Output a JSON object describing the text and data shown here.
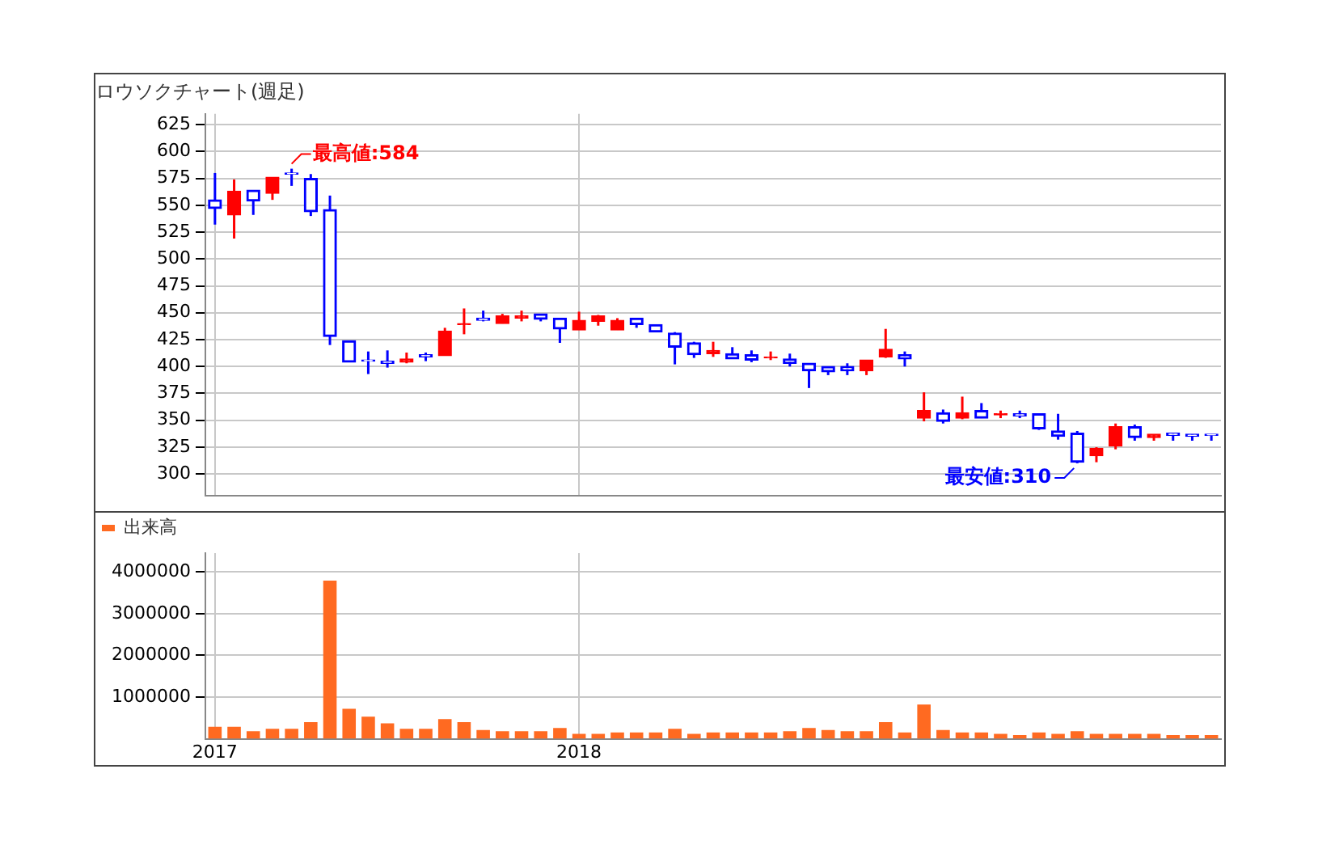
{
  "chart_data": [
    {
      "type": "candlestick",
      "categories": [
        "2017",
        null,
        null,
        null,
        null,
        null,
        null,
        null,
        null,
        null,
        null,
        null,
        null,
        null,
        null,
        null,
        null,
        null,
        null,
        "2018",
        null,
        null,
        null,
        null,
        null,
        null,
        null,
        null,
        null,
        null,
        null,
        null,
        null,
        null,
        null,
        null,
        null,
        null,
        null,
        null,
        null,
        null,
        null,
        null,
        null,
        null,
        null,
        null,
        null,
        null,
        null,
        null,
        null
      ],
      "title": "ロウソクチャート(週足)",
      "ohlc": [
        [
          555,
          580,
          532,
          547
        ],
        [
          541,
          574,
          519,
          563
        ],
        [
          564,
          564,
          541,
          554
        ],
        [
          561,
          576,
          555,
          576
        ],
        [
          580,
          584,
          568,
          579
        ],
        [
          575,
          579,
          540,
          544
        ],
        [
          546,
          559,
          420,
          428
        ],
        [
          424,
          424,
          404,
          404
        ],
        [
          406,
          414,
          393,
          405
        ],
        [
          405,
          415,
          399,
          403
        ],
        [
          404,
          413,
          403,
          407
        ],
        [
          411,
          413,
          405,
          409
        ],
        [
          410,
          436,
          410,
          433
        ],
        [
          439,
          454,
          430,
          440
        ],
        [
          445,
          452,
          442,
          443
        ],
        [
          440,
          449,
          440,
          447
        ],
        [
          445,
          452,
          442,
          447
        ],
        [
          449,
          449,
          442,
          444
        ],
        [
          445,
          445,
          422,
          435
        ],
        [
          434,
          451,
          434,
          443
        ],
        [
          442,
          448,
          438,
          447
        ],
        [
          434,
          445,
          434,
          443
        ],
        [
          445,
          445,
          436,
          439
        ],
        [
          439,
          439,
          432,
          432
        ],
        [
          431,
          432,
          402,
          418
        ],
        [
          422,
          423,
          408,
          411
        ],
        [
          412,
          423,
          409,
          415
        ],
        [
          412,
          418,
          407,
          407
        ],
        [
          411,
          415,
          404,
          406
        ],
        [
          408,
          414,
          406,
          409
        ],
        [
          407,
          412,
          400,
          403
        ],
        [
          403,
          403,
          380,
          396
        ],
        [
          400,
          400,
          392,
          395
        ],
        [
          400,
          403,
          392,
          396
        ],
        [
          396,
          406,
          392,
          406
        ],
        [
          409,
          435,
          408,
          416
        ],
        [
          411,
          414,
          400,
          407
        ],
        [
          352,
          376,
          349,
          359
        ],
        [
          357,
          360,
          347,
          349
        ],
        [
          352,
          372,
          351,
          357
        ],
        [
          359,
          366,
          352,
          352
        ],
        [
          355,
          359,
          352,
          356
        ],
        [
          356,
          359,
          352,
          354
        ],
        [
          356,
          356,
          341,
          342
        ],
        [
          340,
          356,
          332,
          335
        ],
        [
          338,
          340,
          310,
          311
        ],
        [
          317,
          325,
          311,
          324
        ],
        [
          326,
          347,
          323,
          344
        ],
        [
          344,
          346,
          331,
          334
        ],
        [
          334,
          337,
          331,
          337
        ],
        [
          338,
          338,
          331,
          336
        ],
        [
          337,
          337,
          331,
          335
        ],
        [
          337,
          337,
          331,
          336
        ]
      ],
      "colors": [
        "#0000ff",
        "#ff0000",
        "#0000ff",
        "#ff0000",
        "#0000ff",
        "#0000ff",
        "#0000ff",
        "#0000ff",
        "#0000ff",
        "#0000ff",
        "#ff0000",
        "#0000ff",
        "#ff0000",
        "#ff0000",
        "#0000ff",
        "#ff0000",
        "#ff0000",
        "#0000ff",
        "#0000ff",
        "#ff0000",
        "#ff0000",
        "#ff0000",
        "#0000ff",
        "#0000ff",
        "#0000ff",
        "#0000ff",
        "#ff0000",
        "#0000ff",
        "#0000ff",
        "#ff0000",
        "#0000ff",
        "#0000ff",
        "#0000ff",
        "#0000ff",
        "#ff0000",
        "#ff0000",
        "#0000ff",
        "#ff0000",
        "#0000ff",
        "#ff0000",
        "#0000ff",
        "#ff0000",
        "#0000ff",
        "#0000ff",
        "#0000ff",
        "#0000ff",
        "#ff0000",
        "#ff0000",
        "#0000ff",
        "#ff0000",
        "#0000ff",
        "#0000ff",
        "#0000ff"
      ],
      "ylim": [
        280,
        635
      ],
      "yticks": [
        300,
        325,
        350,
        375,
        400,
        425,
        450,
        475,
        500,
        525,
        550,
        575,
        600,
        625
      ],
      "annotations": [
        "最高値:584",
        "最安値:310"
      ],
      "grid": true,
      "tick_labels": "y"
    },
    {
      "type": "bar",
      "categories": [
        "2017",
        null,
        null,
        null,
        null,
        null,
        null,
        null,
        null,
        null,
        null,
        null,
        null,
        null,
        null,
        null,
        null,
        null,
        null,
        "2018",
        null,
        null,
        null,
        null,
        null,
        null,
        null,
        null,
        null,
        null,
        null,
        null,
        null,
        null,
        null,
        null,
        null,
        null,
        null,
        null,
        null,
        null,
        null,
        null,
        null,
        null,
        null,
        null,
        null,
        null,
        null,
        null,
        null
      ],
      "series": [
        {
          "name": "出来高",
          "color": "#ff6a21",
          "values": [
            290000,
            290000,
            180000,
            240000,
            240000,
            400000,
            3790000,
            720000,
            530000,
            370000,
            240000,
            240000,
            470000,
            400000,
            210000,
            180000,
            180000,
            180000,
            260000,
            120000,
            120000,
            150000,
            150000,
            150000,
            240000,
            120000,
            150000,
            150000,
            150000,
            150000,
            180000,
            260000,
            210000,
            180000,
            180000,
            400000,
            150000,
            820000,
            210000,
            150000,
            150000,
            120000,
            90000,
            150000,
            120000,
            180000,
            120000,
            120000,
            120000,
            120000,
            90000,
            90000,
            90000
          ]
        }
      ],
      "ylim": [
        0,
        4450000
      ],
      "yticks": [
        1000000,
        2000000,
        3000000,
        4000000
      ],
      "grid": true,
      "legend": "top left"
    }
  ]
}
